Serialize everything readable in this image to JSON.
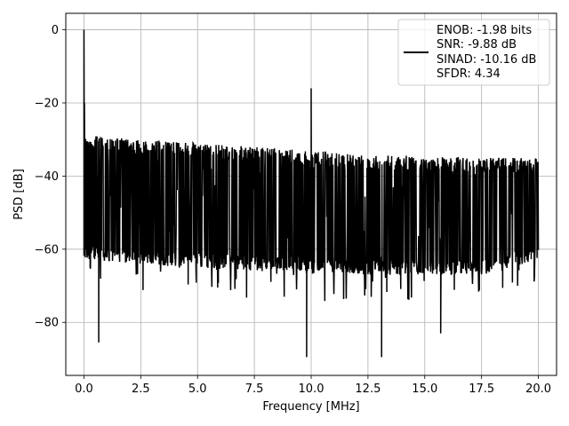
{
  "chart_data": {
    "type": "line",
    "title": "",
    "xlabel": "Frequency [MHz]",
    "ylabel": "PSD [dB]",
    "xlim": [
      -0.8,
      20.8
    ],
    "ylim": [
      -94.5,
      4.5
    ],
    "xticks": [
      0.0,
      2.5,
      5.0,
      7.5,
      10.0,
      12.5,
      15.0,
      17.5,
      20.0
    ],
    "xtick_labels": [
      "0.0",
      "2.5",
      "5.0",
      "7.5",
      "10.0",
      "12.5",
      "15.0",
      "17.5",
      "20.0"
    ],
    "yticks": [
      0,
      -20,
      -40,
      -60,
      -80
    ],
    "ytick_labels": [
      "0",
      "−20",
      "−40",
      "−60",
      "−80"
    ],
    "grid": true,
    "legend_position": "top-right",
    "series": [
      {
        "name": "",
        "color": "#000000",
        "x_range": [
          0,
          20
        ],
        "upper_envelope": [
          [
            0.3,
            -29
          ],
          [
            2.5,
            -30
          ],
          [
            5,
            -31
          ],
          [
            7.5,
            -32
          ],
          [
            10,
            -33
          ],
          [
            12.5,
            -34
          ],
          [
            15,
            -34.5
          ],
          [
            17.5,
            -35
          ],
          [
            20,
            -35
          ]
        ],
        "lower_envelope": [
          [
            0.3,
            -63
          ],
          [
            2.5,
            -64
          ],
          [
            5,
            -65
          ],
          [
            7.5,
            -66
          ],
          [
            10,
            -66
          ],
          [
            12.5,
            -67
          ],
          [
            15,
            -67
          ],
          [
            17.5,
            -67
          ],
          [
            20,
            -63
          ]
        ],
        "peaks": [
          {
            "x": 0.0,
            "y": 0
          },
          {
            "x": 0.02,
            "y": -20
          },
          {
            "x": 10.0,
            "y": -16
          }
        ],
        "dips": [
          {
            "x": 0.65,
            "y": -85.5
          },
          {
            "x": 9.8,
            "y": -89.5
          },
          {
            "x": 13.1,
            "y": -89.5
          },
          {
            "x": 15.7,
            "y": -83
          }
        ]
      }
    ],
    "legend": {
      "lines": [
        "ENOB: -1.98 bits",
        "SNR: -9.88 dB",
        "SINAD: -10.16 dB",
        "SFDR: 4.34"
      ]
    }
  }
}
